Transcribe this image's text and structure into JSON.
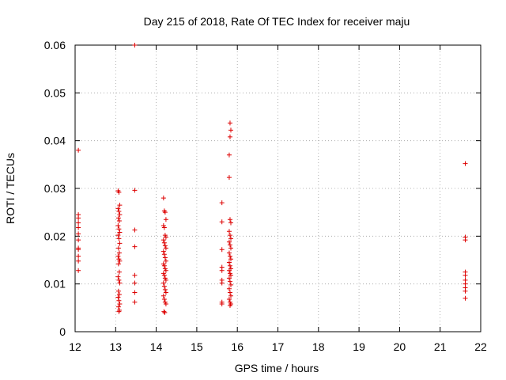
{
  "chart_data": {
    "type": "scatter",
    "title": "Day 215 of 2018, Rate Of TEC Index for receiver maju",
    "xlabel": "GPS time / hours",
    "ylabel": "ROTI / TECUs",
    "xlim": [
      12,
      22
    ],
    "ylim": [
      0,
      0.06
    ],
    "x_ticks": [
      "12",
      "13",
      "14",
      "15",
      "16",
      "17",
      "18",
      "19",
      "20",
      "21",
      "22"
    ],
    "y_ticks": [
      "0",
      "0.01",
      "0.02",
      "0.03",
      "0.04",
      "0.05",
      "0.06"
    ],
    "grid": true,
    "marker": "plus",
    "color": "#dd0000",
    "series": [
      {
        "points": [
          [
            12.08,
            0.038
          ],
          [
            12.08,
            0.0245
          ],
          [
            12.08,
            0.0238
          ],
          [
            12.08,
            0.0228
          ],
          [
            12.08,
            0.0218
          ],
          [
            12.08,
            0.0205
          ],
          [
            12.08,
            0.0192
          ],
          [
            12.08,
            0.0175
          ],
          [
            12.08,
            0.0172
          ],
          [
            12.08,
            0.0158
          ],
          [
            12.08,
            0.0148
          ],
          [
            12.08,
            0.0128
          ],
          [
            13.06,
            0.0295
          ],
          [
            13.08,
            0.0292
          ],
          [
            13.1,
            0.0265
          ],
          [
            13.06,
            0.0258
          ],
          [
            13.08,
            0.0252
          ],
          [
            13.1,
            0.0245
          ],
          [
            13.07,
            0.0238
          ],
          [
            13.09,
            0.0232
          ],
          [
            13.06,
            0.0222
          ],
          [
            13.08,
            0.0215
          ],
          [
            13.1,
            0.0208
          ],
          [
            13.06,
            0.0202
          ],
          [
            13.08,
            0.0195
          ],
          [
            13.1,
            0.0185
          ],
          [
            13.07,
            0.0175
          ],
          [
            13.09,
            0.0165
          ],
          [
            13.06,
            0.0158
          ],
          [
            13.08,
            0.0152
          ],
          [
            13.1,
            0.0148
          ],
          [
            13.07,
            0.0142
          ],
          [
            13.09,
            0.0125
          ],
          [
            13.06,
            0.0115
          ],
          [
            13.08,
            0.0108
          ],
          [
            13.1,
            0.0102
          ],
          [
            13.07,
            0.0085
          ],
          [
            13.09,
            0.0078
          ],
          [
            13.06,
            0.0072
          ],
          [
            13.08,
            0.0065
          ],
          [
            13.1,
            0.0058
          ],
          [
            13.07,
            0.0052
          ],
          [
            13.09,
            0.0045
          ],
          [
            13.08,
            0.0042
          ],
          [
            13.47,
            0.06
          ],
          [
            13.47,
            0.0296
          ],
          [
            13.47,
            0.0213
          ],
          [
            13.47,
            0.0178
          ],
          [
            13.47,
            0.0118
          ],
          [
            13.47,
            0.0102
          ],
          [
            13.47,
            0.0082
          ],
          [
            13.47,
            0.0062
          ],
          [
            14.18,
            0.028
          ],
          [
            14.2,
            0.0253
          ],
          [
            14.22,
            0.025
          ],
          [
            14.24,
            0.0235
          ],
          [
            14.18,
            0.0222
          ],
          [
            14.2,
            0.0218
          ],
          [
            14.22,
            0.0202
          ],
          [
            14.24,
            0.0198
          ],
          [
            14.18,
            0.0192
          ],
          [
            14.2,
            0.0186
          ],
          [
            14.22,
            0.018
          ],
          [
            14.24,
            0.0175
          ],
          [
            14.18,
            0.0168
          ],
          [
            14.2,
            0.0162
          ],
          [
            14.22,
            0.0155
          ],
          [
            14.24,
            0.0148
          ],
          [
            14.18,
            0.0142
          ],
          [
            14.2,
            0.0138
          ],
          [
            14.22,
            0.0132
          ],
          [
            14.24,
            0.0128
          ],
          [
            14.18,
            0.0122
          ],
          [
            14.2,
            0.0118
          ],
          [
            14.22,
            0.0112
          ],
          [
            14.24,
            0.0108
          ],
          [
            14.18,
            0.0102
          ],
          [
            14.2,
            0.0095
          ],
          [
            14.22,
            0.0088
          ],
          [
            14.24,
            0.0082
          ],
          [
            14.18,
            0.0075
          ],
          [
            14.2,
            0.0068
          ],
          [
            14.22,
            0.0062
          ],
          [
            14.24,
            0.0058
          ],
          [
            14.19,
            0.0042
          ],
          [
            14.21,
            0.004
          ],
          [
            15.62,
            0.027
          ],
          [
            15.62,
            0.023
          ],
          [
            15.62,
            0.0172
          ],
          [
            15.62,
            0.0135
          ],
          [
            15.62,
            0.0128
          ],
          [
            15.62,
            0.0108
          ],
          [
            15.62,
            0.0102
          ],
          [
            15.62,
            0.0062
          ],
          [
            15.62,
            0.0058
          ],
          [
            15.82,
            0.0437
          ],
          [
            15.84,
            0.0422
          ],
          [
            15.82,
            0.0408
          ],
          [
            15.8,
            0.037
          ],
          [
            15.8,
            0.0323
          ],
          [
            15.82,
            0.0235
          ],
          [
            15.84,
            0.0228
          ],
          [
            15.8,
            0.021
          ],
          [
            15.82,
            0.0202
          ],
          [
            15.84,
            0.0195
          ],
          [
            15.8,
            0.0188
          ],
          [
            15.82,
            0.0182
          ],
          [
            15.84,
            0.0175
          ],
          [
            15.8,
            0.0165
          ],
          [
            15.82,
            0.0158
          ],
          [
            15.84,
            0.0152
          ],
          [
            15.8,
            0.0145
          ],
          [
            15.82,
            0.0138
          ],
          [
            15.84,
            0.0132
          ],
          [
            15.8,
            0.0128
          ],
          [
            15.82,
            0.0122
          ],
          [
            15.84,
            0.0118
          ],
          [
            15.8,
            0.0112
          ],
          [
            15.82,
            0.0105
          ],
          [
            15.84,
            0.0098
          ],
          [
            15.8,
            0.009
          ],
          [
            15.82,
            0.0082
          ],
          [
            15.84,
            0.0075
          ],
          [
            15.8,
            0.0068
          ],
          [
            15.82,
            0.0062
          ],
          [
            15.84,
            0.0058
          ],
          [
            15.82,
            0.0055
          ],
          [
            21.62,
            0.0352
          ],
          [
            21.62,
            0.0198
          ],
          [
            21.62,
            0.0192
          ],
          [
            21.62,
            0.0125
          ],
          [
            21.62,
            0.0118
          ],
          [
            21.62,
            0.0108
          ],
          [
            21.62,
            0.01
          ],
          [
            21.62,
            0.0092
          ],
          [
            21.62,
            0.0085
          ],
          [
            21.62,
            0.007
          ]
        ]
      }
    ]
  }
}
